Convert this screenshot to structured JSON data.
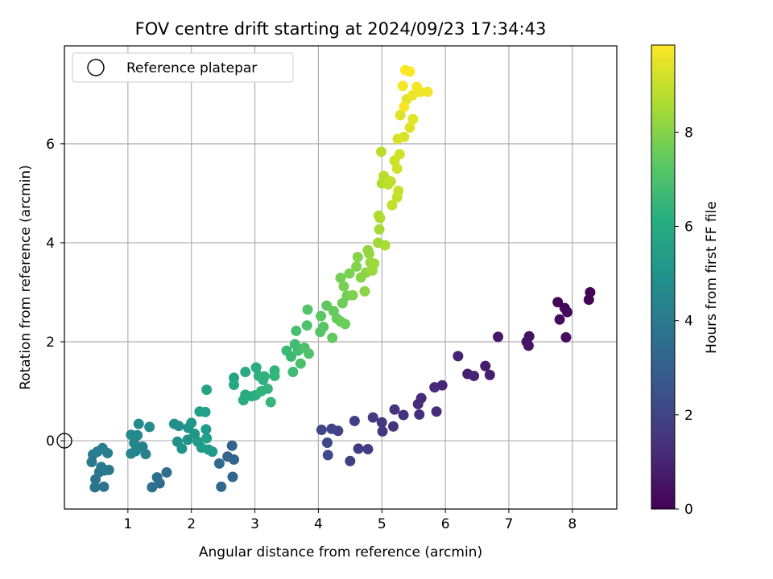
{
  "chart_data": {
    "type": "scatter",
    "title": "FOV centre drift starting at 2024/09/23 17:34:43",
    "xlabel": "Angular distance from reference (arcmin)",
    "ylabel": "Rotation from reference (arcmin)",
    "xlim": [
      0.0,
      8.7
    ],
    "ylim": [
      -1.38,
      7.98
    ],
    "xticks": [
      1,
      2,
      3,
      4,
      5,
      6,
      7,
      8
    ],
    "yticks": [
      0,
      2,
      4,
      6
    ],
    "grid": true,
    "legend": {
      "placement": "upper-left",
      "entries": [
        {
          "label": "Reference platepar",
          "marker": "open-circle"
        }
      ]
    },
    "reference_point": {
      "x": 0,
      "y": 0
    },
    "colorbar": {
      "label": "Hours from first FF file",
      "min": 0,
      "max": 9.85,
      "ticks": [
        0,
        2,
        4,
        6,
        8
      ],
      "colormap": "viridis"
    },
    "points": [
      {
        "x": 8.28,
        "y": 3.0,
        "c": 0.05
      },
      {
        "x": 8.26,
        "y": 2.85,
        "c": 0.1
      },
      {
        "x": 7.77,
        "y": 2.8,
        "c": 0.15
      },
      {
        "x": 7.88,
        "y": 2.68,
        "c": 0.2
      },
      {
        "x": 7.92,
        "y": 2.6,
        "c": 0.25
      },
      {
        "x": 7.8,
        "y": 2.45,
        "c": 0.3
      },
      {
        "x": 7.9,
        "y": 2.09,
        "c": 0.35
      },
      {
        "x": 7.32,
        "y": 2.11,
        "c": 0.45
      },
      {
        "x": 7.28,
        "y": 2.0,
        "c": 0.5
      },
      {
        "x": 7.31,
        "y": 1.92,
        "c": 0.55
      },
      {
        "x": 6.83,
        "y": 2.1,
        "c": 0.65
      },
      {
        "x": 6.63,
        "y": 1.51,
        "c": 0.75
      },
      {
        "x": 6.7,
        "y": 1.33,
        "c": 0.8
      },
      {
        "x": 6.35,
        "y": 1.35,
        "c": 0.85
      },
      {
        "x": 6.45,
        "y": 1.31,
        "c": 0.9
      },
      {
        "x": 6.2,
        "y": 1.71,
        "c": 0.95
      },
      {
        "x": 5.95,
        "y": 1.12,
        "c": 1.05
      },
      {
        "x": 5.83,
        "y": 1.08,
        "c": 1.1
      },
      {
        "x": 5.62,
        "y": 0.86,
        "c": 1.15
      },
      {
        "x": 5.57,
        "y": 0.74,
        "c": 1.2
      },
      {
        "x": 5.86,
        "y": 0.59,
        "c": 1.25
      },
      {
        "x": 5.59,
        "y": 0.53,
        "c": 1.3
      },
      {
        "x": 5.34,
        "y": 0.52,
        "c": 1.4
      },
      {
        "x": 5.2,
        "y": 0.63,
        "c": 1.45
      },
      {
        "x": 5.18,
        "y": 0.29,
        "c": 1.5
      },
      {
        "x": 5.0,
        "y": 0.37,
        "c": 1.55
      },
      {
        "x": 5.01,
        "y": 0.19,
        "c": 1.6
      },
      {
        "x": 4.86,
        "y": 0.47,
        "c": 1.65
      },
      {
        "x": 4.78,
        "y": -0.17,
        "c": 1.75
      },
      {
        "x": 4.63,
        "y": -0.16,
        "c": 1.8
      },
      {
        "x": 4.57,
        "y": 0.4,
        "c": 1.85
      },
      {
        "x": 4.5,
        "y": -0.41,
        "c": 1.9
      },
      {
        "x": 4.31,
        "y": 0.2,
        "c": 2.0
      },
      {
        "x": 4.21,
        "y": 0.24,
        "c": 2.05
      },
      {
        "x": 4.05,
        "y": 0.22,
        "c": 2.1
      },
      {
        "x": 4.14,
        "y": -0.04,
        "c": 2.15
      },
      {
        "x": 4.15,
        "y": -0.29,
        "c": 2.2
      },
      {
        "x": 2.64,
        "y": -0.1,
        "c": 3.1
      },
      {
        "x": 2.57,
        "y": -0.32,
        "c": 3.15
      },
      {
        "x": 2.67,
        "y": -0.38,
        "c": 3.2
      },
      {
        "x": 2.65,
        "y": -0.73,
        "c": 3.25
      },
      {
        "x": 2.47,
        "y": -0.93,
        "c": 3.3
      },
      {
        "x": 2.44,
        "y": -0.46,
        "c": 3.35
      },
      {
        "x": 1.61,
        "y": -0.64,
        "c": 3.45
      },
      {
        "x": 1.5,
        "y": -0.86,
        "c": 3.5
      },
      {
        "x": 1.46,
        "y": -0.74,
        "c": 3.55
      },
      {
        "x": 1.38,
        "y": -0.94,
        "c": 3.6
      },
      {
        "x": 0.62,
        "y": -0.93,
        "c": 3.7
      },
      {
        "x": 0.48,
        "y": -0.94,
        "c": 3.75
      },
      {
        "x": 0.49,
        "y": -0.78,
        "c": 3.8
      },
      {
        "x": 0.55,
        "y": -0.63,
        "c": 3.85
      },
      {
        "x": 0.63,
        "y": -0.6,
        "c": 3.9
      },
      {
        "x": 0.7,
        "y": -0.59,
        "c": 3.95
      },
      {
        "x": 0.58,
        "y": -0.53,
        "c": 4.0
      },
      {
        "x": 0.43,
        "y": -0.43,
        "c": 4.05
      },
      {
        "x": 0.45,
        "y": -0.28,
        "c": 4.1
      },
      {
        "x": 0.52,
        "y": -0.22,
        "c": 4.15
      },
      {
        "x": 0.6,
        "y": -0.15,
        "c": 4.2
      },
      {
        "x": 0.68,
        "y": -0.25,
        "c": 4.25
      },
      {
        "x": 1.23,
        "y": -0.12,
        "c": 4.35
      },
      {
        "x": 1.28,
        "y": -0.27,
        "c": 4.4
      },
      {
        "x": 1.12,
        "y": -0.21,
        "c": 4.45
      },
      {
        "x": 1.05,
        "y": -0.26,
        "c": 4.5
      },
      {
        "x": 1.1,
        "y": -0.05,
        "c": 4.55
      },
      {
        "x": 1.05,
        "y": 0.12,
        "c": 4.6
      },
      {
        "x": 1.15,
        "y": 0.11,
        "c": 4.65
      },
      {
        "x": 1.17,
        "y": 0.34,
        "c": 4.7
      },
      {
        "x": 1.34,
        "y": 0.28,
        "c": 4.75
      },
      {
        "x": 1.8,
        "y": 0.3,
        "c": 4.85
      },
      {
        "x": 1.73,
        "y": 0.34,
        "c": 4.9
      },
      {
        "x": 1.78,
        "y": -0.02,
        "c": 4.95
      },
      {
        "x": 1.85,
        "y": -0.16,
        "c": 5.0
      },
      {
        "x": 1.94,
        "y": 0.02,
        "c": 5.05
      },
      {
        "x": 1.95,
        "y": 0.26,
        "c": 5.1
      },
      {
        "x": 2.0,
        "y": 0.36,
        "c": 5.15
      },
      {
        "x": 2.05,
        "y": 0.14,
        "c": 5.2
      },
      {
        "x": 2.1,
        "y": -0.02,
        "c": 5.25
      },
      {
        "x": 2.16,
        "y": -0.14,
        "c": 5.3
      },
      {
        "x": 2.23,
        "y": 0.23,
        "c": 5.35
      },
      {
        "x": 2.27,
        "y": -0.18,
        "c": 5.4
      },
      {
        "x": 2.33,
        "y": -0.22,
        "c": 5.45
      },
      {
        "x": 2.24,
        "y": 0.05,
        "c": 5.5
      },
      {
        "x": 2.13,
        "y": 0.59,
        "c": 5.55
      },
      {
        "x": 2.22,
        "y": 0.58,
        "c": 5.6
      },
      {
        "x": 2.24,
        "y": 1.03,
        "c": 5.65
      },
      {
        "x": 2.67,
        "y": 1.27,
        "c": 5.8
      },
      {
        "x": 2.67,
        "y": 1.13,
        "c": 5.85
      },
      {
        "x": 2.85,
        "y": 1.39,
        "c": 5.9
      },
      {
        "x": 2.85,
        "y": 0.93,
        "c": 5.95
      },
      {
        "x": 2.82,
        "y": 0.82,
        "c": 6.0
      },
      {
        "x": 2.95,
        "y": 0.9,
        "c": 6.05
      },
      {
        "x": 3.01,
        "y": 0.92,
        "c": 6.1
      },
      {
        "x": 3.02,
        "y": 1.48,
        "c": 6.15
      },
      {
        "x": 3.06,
        "y": 1.31,
        "c": 6.2
      },
      {
        "x": 3.13,
        "y": 1.23,
        "c": 6.25
      },
      {
        "x": 3.15,
        "y": 1.3,
        "c": 6.3
      },
      {
        "x": 3.1,
        "y": 1.0,
        "c": 6.35
      },
      {
        "x": 3.2,
        "y": 1.05,
        "c": 6.4
      },
      {
        "x": 3.31,
        "y": 1.42,
        "c": 6.45
      },
      {
        "x": 3.31,
        "y": 1.31,
        "c": 6.5
      },
      {
        "x": 3.25,
        "y": 0.78,
        "c": 6.55
      },
      {
        "x": 3.5,
        "y": 1.82,
        "c": 6.65
      },
      {
        "x": 3.57,
        "y": 1.7,
        "c": 6.7
      },
      {
        "x": 3.6,
        "y": 1.39,
        "c": 6.75
      },
      {
        "x": 3.63,
        "y": 1.95,
        "c": 6.8
      },
      {
        "x": 3.68,
        "y": 1.82,
        "c": 6.85
      },
      {
        "x": 3.65,
        "y": 2.22,
        "c": 6.9
      },
      {
        "x": 3.72,
        "y": 1.56,
        "c": 6.95
      },
      {
        "x": 3.78,
        "y": 1.88,
        "c": 7.0
      },
      {
        "x": 3.82,
        "y": 2.33,
        "c": 7.05
      },
      {
        "x": 3.85,
        "y": 1.76,
        "c": 7.1
      },
      {
        "x": 3.83,
        "y": 2.65,
        "c": 7.15
      },
      {
        "x": 4.03,
        "y": 2.2,
        "c": 7.2
      },
      {
        "x": 4.08,
        "y": 2.3,
        "c": 7.25
      },
      {
        "x": 4.04,
        "y": 2.52,
        "c": 7.3
      },
      {
        "x": 4.13,
        "y": 2.73,
        "c": 7.35
      },
      {
        "x": 4.22,
        "y": 2.08,
        "c": 7.4
      },
      {
        "x": 4.24,
        "y": 2.62,
        "c": 7.45
      },
      {
        "x": 4.29,
        "y": 2.47,
        "c": 7.5
      },
      {
        "x": 4.35,
        "y": 2.41,
        "c": 7.55
      },
      {
        "x": 4.42,
        "y": 2.36,
        "c": 7.6
      },
      {
        "x": 4.38,
        "y": 2.78,
        "c": 7.65
      },
      {
        "x": 4.45,
        "y": 2.93,
        "c": 7.7
      },
      {
        "x": 4.35,
        "y": 3.29,
        "c": 7.75
      },
      {
        "x": 4.4,
        "y": 3.12,
        "c": 7.8
      },
      {
        "x": 4.49,
        "y": 3.38,
        "c": 7.85
      },
      {
        "x": 4.54,
        "y": 2.94,
        "c": 7.9
      },
      {
        "x": 4.6,
        "y": 3.52,
        "c": 7.95
      },
      {
        "x": 4.62,
        "y": 3.71,
        "c": 8.0
      },
      {
        "x": 4.67,
        "y": 3.3,
        "c": 8.05
      },
      {
        "x": 4.73,
        "y": 3.02,
        "c": 8.1
      },
      {
        "x": 4.75,
        "y": 3.4,
        "c": 8.15
      },
      {
        "x": 4.78,
        "y": 3.85,
        "c": 8.2
      },
      {
        "x": 4.8,
        "y": 3.78,
        "c": 8.25
      },
      {
        "x": 4.82,
        "y": 3.6,
        "c": 8.3
      },
      {
        "x": 4.85,
        "y": 3.44,
        "c": 8.35
      },
      {
        "x": 4.88,
        "y": 3.58,
        "c": 8.4
      },
      {
        "x": 4.94,
        "y": 4.0,
        "c": 8.45
      },
      {
        "x": 4.96,
        "y": 4.27,
        "c": 8.5
      },
      {
        "x": 5.05,
        "y": 3.95,
        "c": 8.55
      },
      {
        "x": 4.95,
        "y": 4.55,
        "c": 8.6
      },
      {
        "x": 4.97,
        "y": 4.5,
        "c": 8.65
      },
      {
        "x": 5.0,
        "y": 5.2,
        "c": 8.7
      },
      {
        "x": 5.03,
        "y": 5.35,
        "c": 8.75
      },
      {
        "x": 4.99,
        "y": 5.84,
        "c": 8.8
      },
      {
        "x": 5.1,
        "y": 5.18,
        "c": 8.85
      },
      {
        "x": 5.14,
        "y": 5.24,
        "c": 8.9
      },
      {
        "x": 5.16,
        "y": 4.76,
        "c": 8.95
      },
      {
        "x": 5.24,
        "y": 4.92,
        "c": 9.0
      },
      {
        "x": 5.26,
        "y": 5.05,
        "c": 9.05
      },
      {
        "x": 5.2,
        "y": 5.66,
        "c": 9.1
      },
      {
        "x": 5.24,
        "y": 5.5,
        "c": 9.15
      },
      {
        "x": 5.28,
        "y": 5.79,
        "c": 9.2
      },
      {
        "x": 5.25,
        "y": 6.1,
        "c": 9.25
      },
      {
        "x": 5.35,
        "y": 6.14,
        "c": 9.3
      },
      {
        "x": 5.29,
        "y": 6.58,
        "c": 9.35
      },
      {
        "x": 5.44,
        "y": 6.33,
        "c": 9.4
      },
      {
        "x": 5.49,
        "y": 6.5,
        "c": 9.45
      },
      {
        "x": 5.39,
        "y": 6.9,
        "c": 9.5
      },
      {
        "x": 5.48,
        "y": 6.98,
        "c": 9.55
      },
      {
        "x": 5.6,
        "y": 7.05,
        "c": 9.6
      },
      {
        "x": 5.72,
        "y": 7.05,
        "c": 9.65
      },
      {
        "x": 5.55,
        "y": 7.15,
        "c": 9.7
      },
      {
        "x": 5.33,
        "y": 7.17,
        "c": 9.72
      },
      {
        "x": 5.35,
        "y": 6.75,
        "c": 9.75
      },
      {
        "x": 5.37,
        "y": 7.49,
        "c": 9.8
      },
      {
        "x": 5.44,
        "y": 7.46,
        "c": 9.85
      }
    ]
  }
}
